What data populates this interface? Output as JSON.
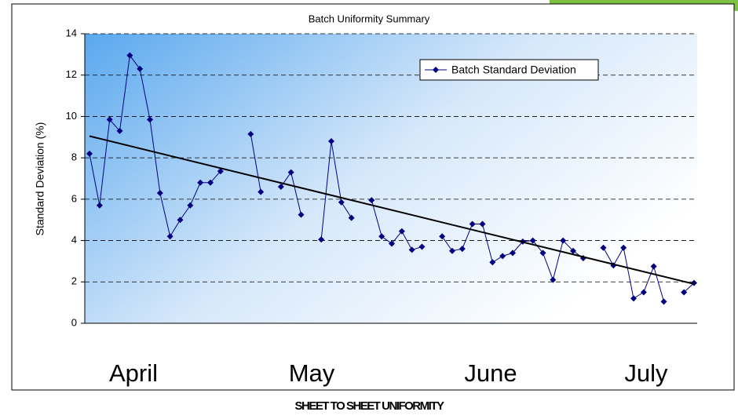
{
  "chart_data": {
    "type": "line",
    "title": "Batch Uniformity Summary",
    "ylabel": "Standard Deviation (%)",
    "caption": "SHEET TO SHEET UNIFORMITY",
    "month_labels": [
      "April",
      "May",
      "June",
      "July"
    ],
    "categories": [
      null,
      null,
      null,
      null,
      null,
      null,
      null,
      null,
      null,
      null,
      null,
      null,
      null,
      null,
      null,
      null,
      null,
      null,
      null,
      null,
      null,
      null,
      null,
      null,
      null,
      null,
      null,
      null,
      null,
      null,
      null,
      null,
      null,
      null,
      null,
      null,
      null,
      null,
      null,
      null,
      null,
      null,
      null,
      null,
      null,
      null,
      null,
      null,
      null,
      null,
      null,
      null,
      null,
      null,
      null,
      null,
      null,
      null,
      null,
      null,
      null
    ],
    "series": [
      {
        "name": "Batch Standard Deviation",
        "color": "#000080",
        "values": [
          8.2,
          5.7,
          9.85,
          9.3,
          12.95,
          12.3,
          9.85,
          6.3,
          4.2,
          5.0,
          5.7,
          6.8,
          6.8,
          7.35,
          null,
          null,
          9.15,
          6.35,
          null,
          6.6,
          7.3,
          5.25,
          null,
          4.05,
          8.8,
          5.85,
          5.1,
          null,
          5.95,
          4.2,
          3.85,
          4.45,
          3.55,
          3.7,
          null,
          4.2,
          3.5,
          3.6,
          4.8,
          4.8,
          2.95,
          3.25,
          3.4,
          3.95,
          4.0,
          3.4,
          2.1,
          4.0,
          3.5,
          3.15,
          null,
          3.65,
          2.8,
          3.65,
          1.2,
          1.5,
          2.75,
          1.05,
          null,
          1.5,
          1.95
        ]
      }
    ],
    "trendline": [
      9.05,
      1.9
    ],
    "ylim": [
      0,
      14
    ],
    "yticks": [
      0,
      2,
      4,
      6,
      8,
      10,
      12,
      14
    ],
    "grid": true,
    "legend": "upper right"
  }
}
